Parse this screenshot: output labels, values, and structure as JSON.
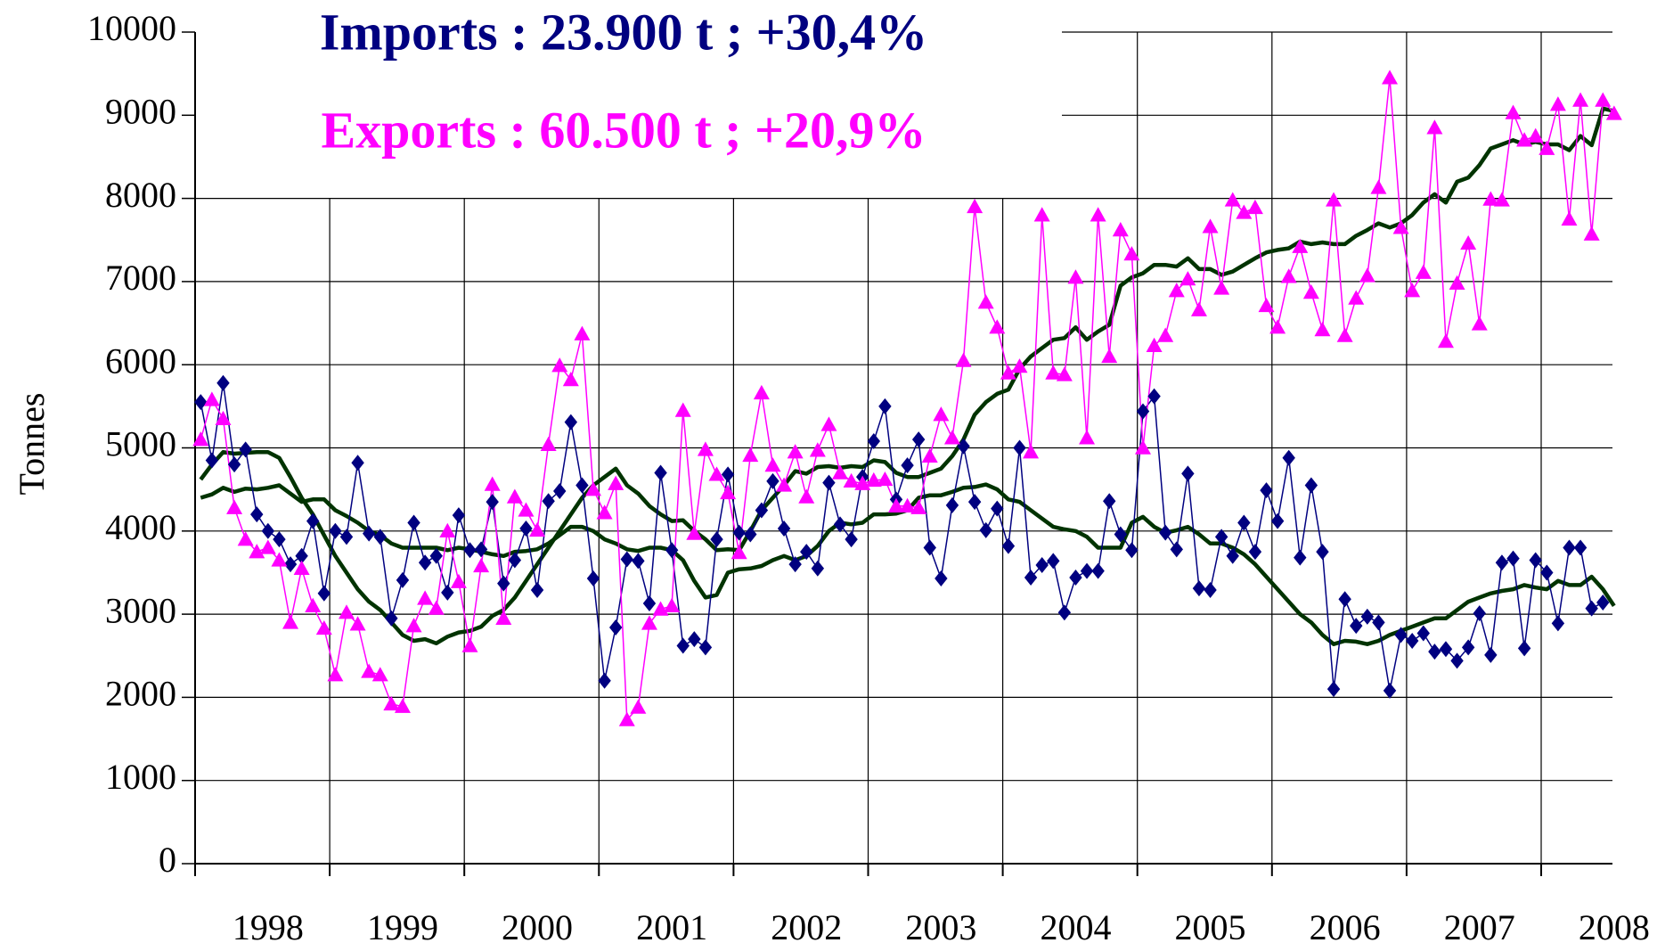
{
  "chart_data": {
    "type": "line",
    "title": "Imports : 23.900 t ; +30,4%",
    "subtitle": "Exports : 60.500 t ; +20,9%",
    "title_color": "#000080",
    "subtitle_color": "#ff00ff",
    "ylabel": "Tonnes",
    "categories": [
      null,
      null,
      null,
      null,
      null,
      null,
      "1998",
      null,
      null,
      null,
      null,
      null,
      null,
      null,
      null,
      null,
      null,
      null,
      "1999",
      null,
      null,
      null,
      null,
      null,
      null,
      null,
      null,
      null,
      null,
      null,
      "2000",
      null,
      null,
      null,
      null,
      null,
      null,
      null,
      null,
      null,
      null,
      null,
      "2001",
      null,
      null,
      null,
      null,
      null,
      null,
      null,
      null,
      null,
      null,
      null,
      "2002",
      null,
      null,
      null,
      null,
      null,
      null,
      null,
      null,
      null,
      null,
      null,
      "2003",
      null,
      null,
      null,
      null,
      null,
      null,
      null,
      null,
      null,
      null,
      null,
      "2004",
      null,
      null,
      null,
      null,
      null,
      null,
      null,
      null,
      null,
      null,
      null,
      "2005",
      null,
      null,
      null,
      null,
      null,
      null,
      null,
      null,
      null,
      null,
      null,
      "2006",
      null,
      null,
      null,
      null,
      null,
      null,
      null,
      null,
      null,
      null,
      null,
      "2007",
      null,
      null,
      null,
      null,
      null,
      null,
      null,
      null,
      null,
      null,
      null,
      "2008"
    ],
    "ylim": [
      0,
      10000
    ],
    "yticks": [
      0,
      1000,
      2000,
      3000,
      4000,
      5000,
      6000,
      7000,
      8000,
      9000,
      10000
    ],
    "grid": true,
    "series": [
      {
        "color": "#000080",
        "marker": "diamond",
        "line_width": 1.5,
        "values": [
          5550,
          4850,
          5780,
          4800,
          4980,
          4200,
          4000,
          3900,
          3600,
          3700,
          4120,
          3250,
          4000,
          3930,
          4820,
          3970,
          3930,
          2950,
          3410,
          4100,
          3620,
          3700,
          3260,
          4190,
          3770,
          3780,
          4350,
          3370,
          3650,
          4030,
          3290,
          4360,
          4480,
          5310,
          4550,
          3430,
          2200,
          2840,
          3660,
          3640,
          3130,
          4700,
          3770,
          2620,
          2700,
          2600,
          3900,
          4680,
          3980,
          3960,
          4250,
          4600,
          4030,
          3600,
          3750,
          3550,
          4580,
          4080,
          3900,
          4650,
          5080,
          5500,
          4380,
          4790,
          5100,
          3800,
          3430,
          4310,
          5020,
          4350,
          4010,
          4270,
          3820,
          5000,
          3440,
          3590,
          3640,
          3020,
          3440,
          3520,
          3520,
          4360,
          3960,
          3770,
          5440,
          5620,
          3980,
          3780,
          4690,
          3310,
          3290,
          3930,
          3700,
          4100,
          3750,
          4490,
          4120,
          4880,
          3680,
          4550,
          3750,
          2100,
          3180,
          2860,
          2970,
          2900,
          2080,
          2750,
          2680,
          2770,
          2550,
          2580,
          2440,
          2600,
          3010,
          2510,
          3620,
          3670,
          2590,
          3650,
          3500,
          2890,
          3800,
          3800,
          3070,
          3140,
          null
        ]
      },
      {
        "color": "#ff00ff",
        "marker": "triangle",
        "line_width": 1.5,
        "values": [
          5100,
          5580,
          5350,
          4280,
          3900,
          3750,
          3800,
          3650,
          2900,
          3550,
          3100,
          2830,
          2270,
          3020,
          2880,
          2310,
          2270,
          1920,
          1890,
          2860,
          3190,
          3070,
          4000,
          3390,
          2620,
          3580,
          4560,
          2950,
          4410,
          4250,
          4010,
          5040,
          5990,
          5820,
          6370,
          4500,
          4220,
          4570,
          1730,
          1880,
          2890,
          3060,
          3100,
          5450,
          3970,
          4980,
          4680,
          4460,
          3740,
          4910,
          5660,
          4790,
          4550,
          4950,
          4410,
          4970,
          5280,
          4700,
          4600,
          4570,
          4610,
          4620,
          4300,
          4300,
          4280,
          4900,
          5400,
          5120,
          6050,
          7900,
          6750,
          6450,
          5900,
          5980,
          4950,
          7800,
          5900,
          5880,
          7050,
          5120,
          7800,
          6100,
          7620,
          7330,
          5000,
          6230,
          6350,
          6890,
          7030,
          6660,
          7660,
          6920,
          7980,
          7830,
          7890,
          6710,
          6450,
          7060,
          7420,
          6870,
          6420,
          7980,
          6350,
          6800,
          7070,
          8130,
          9450,
          7650,
          6890,
          7110,
          8850,
          6280,
          6980,
          7460,
          6490,
          7990,
          7980,
          9030,
          8700,
          8750,
          8600,
          9130,
          7750,
          9180,
          7570,
          9180,
          9020
        ]
      },
      {
        "color": "#003300",
        "line_width": 4.5,
        "values": [
          4620,
          4800,
          4950,
          4930,
          4940,
          4950,
          4950,
          4880,
          4650,
          4400,
          4200,
          3950,
          3700,
          3500,
          3300,
          3150,
          3050,
          2900,
          2750,
          2680,
          2700,
          2650,
          2730,
          2780,
          2800,
          2850,
          2980,
          3050,
          3200,
          3400,
          3600,
          3800,
          4000,
          4200,
          4400,
          4550,
          4650,
          4750,
          4550,
          4450,
          4300,
          4200,
          4120,
          4130,
          4000,
          3900,
          3770,
          3780,
          3770,
          4000,
          4250,
          4400,
          4550,
          4720,
          4690,
          4770,
          4780,
          4760,
          4780,
          4770,
          4850,
          4830,
          4700,
          4650,
          4650,
          4700,
          4750,
          4900,
          5100,
          5400,
          5550,
          5650,
          5700,
          5950,
          6100,
          6200,
          6300,
          6320,
          6450,
          6300,
          6400,
          6480,
          6950,
          7050,
          7100,
          7200,
          7200,
          7180,
          7280,
          7150,
          7150,
          7080,
          7120,
          7200,
          7280,
          7350,
          7380,
          7400,
          7480,
          7450,
          7470,
          7450,
          7450,
          7550,
          7620,
          7700,
          7650,
          7700,
          7800,
          7950,
          8050,
          7950,
          8200,
          8250,
          8400,
          8600,
          8650,
          8700,
          8650,
          8680,
          8650,
          8650,
          8580,
          8750,
          8640,
          9080,
          9050
        ]
      },
      {
        "color": "#003300",
        "line_width": 4.5,
        "values": [
          4400,
          4440,
          4520,
          4470,
          4510,
          4500,
          4520,
          4550,
          4450,
          4350,
          4380,
          4380,
          4250,
          4180,
          4100,
          4000,
          3950,
          3850,
          3800,
          3800,
          3800,
          3800,
          3770,
          3800,
          3780,
          3750,
          3720,
          3700,
          3750,
          3760,
          3780,
          3850,
          3950,
          4050,
          4050,
          4000,
          3900,
          3850,
          3780,
          3760,
          3800,
          3800,
          3770,
          3650,
          3400,
          3200,
          3230,
          3500,
          3540,
          3550,
          3580,
          3650,
          3700,
          3650,
          3700,
          3820,
          4000,
          4100,
          4080,
          4100,
          4200,
          4200,
          4210,
          4250,
          4400,
          4430,
          4430,
          4470,
          4520,
          4530,
          4560,
          4500,
          4380,
          4350,
          4250,
          4150,
          4050,
          4020,
          4000,
          3930,
          3800,
          3800,
          3800,
          4100,
          4170,
          4050,
          3980,
          4010,
          4050,
          3960,
          3850,
          3850,
          3800,
          3720,
          3600,
          3450,
          3300,
          3150,
          3000,
          2900,
          2750,
          2640,
          2680,
          2670,
          2640,
          2680,
          2750,
          2800,
          2850,
          2900,
          2950,
          2950,
          3050,
          3150,
          3200,
          3250,
          3280,
          3300,
          3350,
          3320,
          3300,
          3400,
          3350,
          3350,
          3450,
          3300,
          3100
        ]
      }
    ]
  }
}
